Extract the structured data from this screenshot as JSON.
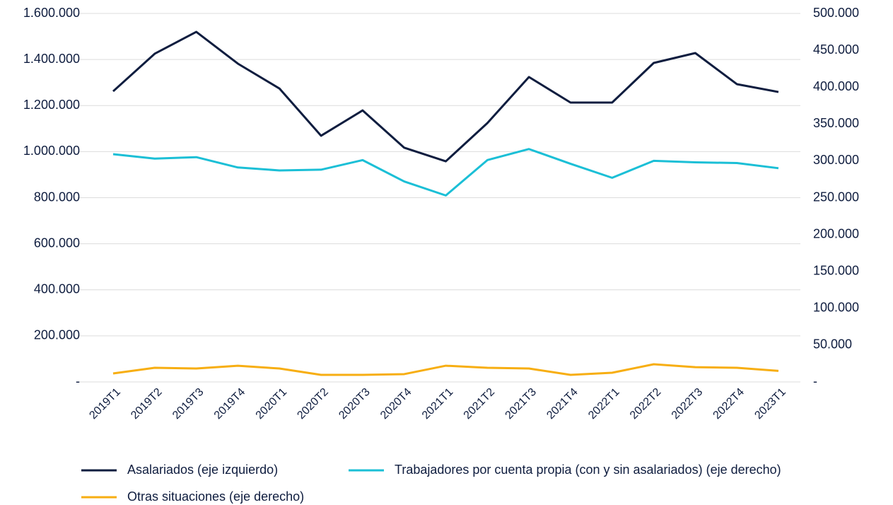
{
  "chart_data": {
    "type": "line",
    "categories": [
      "2019T1",
      "2019T2",
      "2019T3",
      "2019T4",
      "2020T1",
      "2020T2",
      "2020T3",
      "2020T4",
      "2021T1",
      "2021T2",
      "2021T3",
      "2021T4",
      "2022T1",
      "2022T2",
      "2022T3",
      "2022T4",
      "2023T1"
    ],
    "series": [
      {
        "name": "Asalariados (eje izquierdo)",
        "color": "#0f1d3f",
        "axis": "y",
        "values": [
          1262000,
          1425000,
          1520000,
          1382000,
          1274000,
          1069000,
          1179000,
          1017000,
          958000,
          1124000,
          1324000,
          1213000,
          1213000,
          1385000,
          1428000,
          1293000,
          1259000
        ]
      },
      {
        "name": "Trabajadores por cuenta propia (con y sin asalariados) (eje derecho)",
        "color": "#1bbfd6",
        "axis": "y2",
        "values": [
          309000,
          303000,
          305000,
          291000,
          287000,
          288000,
          301000,
          272000,
          253000,
          301000,
          316000,
          296000,
          277000,
          300000,
          298000,
          297000,
          290000
        ]
      },
      {
        "name": "Otras situaciones (eje derecho)",
        "color": "#f7ae12",
        "axis": "y2",
        "values": [
          11500,
          19200,
          18200,
          22000,
          18200,
          9600,
          9600,
          10600,
          22000,
          19200,
          18200,
          9600,
          12500,
          24000,
          20000,
          19200,
          15000
        ]
      }
    ],
    "ylim": [
      0,
      1600000
    ],
    "yticks": [
      {
        "value": 0,
        "label": "-"
      },
      {
        "value": 200000,
        "label": "200.000"
      },
      {
        "value": 400000,
        "label": "400.000"
      },
      {
        "value": 600000,
        "label": "600.000"
      },
      {
        "value": 800000,
        "label": "800.000"
      },
      {
        "value": 1000000,
        "label": "1.000.000"
      },
      {
        "value": 1200000,
        "label": "1.200.000"
      },
      {
        "value": 1400000,
        "label": "1.400.000"
      },
      {
        "value": 1600000,
        "label": "1.600.000"
      }
    ],
    "y2lim": [
      0,
      500000
    ],
    "y2ticks": [
      {
        "value": 0,
        "label": "-"
      },
      {
        "value": 50000,
        "label": "50.000"
      },
      {
        "value": 100000,
        "label": "100.000"
      },
      {
        "value": 150000,
        "label": "150.000"
      },
      {
        "value": 200000,
        "label": "200.000"
      },
      {
        "value": 250000,
        "label": "250.000"
      },
      {
        "value": 300000,
        "label": "300.000"
      },
      {
        "value": 350000,
        "label": "350.000"
      },
      {
        "value": 400000,
        "label": "400.000"
      },
      {
        "value": 450000,
        "label": "450.000"
      },
      {
        "value": 500000,
        "label": "500.000"
      }
    ],
    "grid": true
  }
}
